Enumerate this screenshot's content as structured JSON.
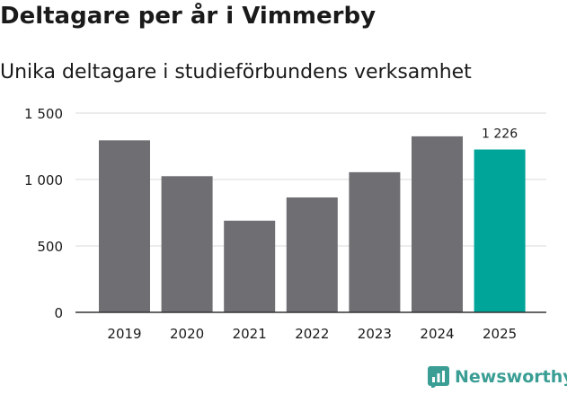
{
  "header": {
    "title": "Deltagare per år i Vimmerby",
    "subtitle": "Unika deltagare i studieförbundens verksamhet"
  },
  "brand": {
    "name": "Newsworthy",
    "icon": "newsworthy-logo-icon",
    "color": "#3a9e94"
  },
  "chart_data": {
    "type": "bar",
    "categories": [
      "2019",
      "2020",
      "2021",
      "2022",
      "2023",
      "2024",
      "2025"
    ],
    "values": [
      1295,
      1025,
      690,
      865,
      1055,
      1325,
      1226
    ],
    "highlight_index": 6,
    "highlight_label": "1 226",
    "ylim": [
      0,
      1500
    ],
    "yticks": [
      0,
      500,
      1000,
      1500
    ],
    "ytick_labels": [
      "0",
      "500",
      "1 000",
      "1 500"
    ],
    "grid": true,
    "colors": {
      "bar": "#6f6e73",
      "highlight": "#00a59a",
      "grid": "#d9d9d9",
      "axis": "#333333"
    }
  }
}
